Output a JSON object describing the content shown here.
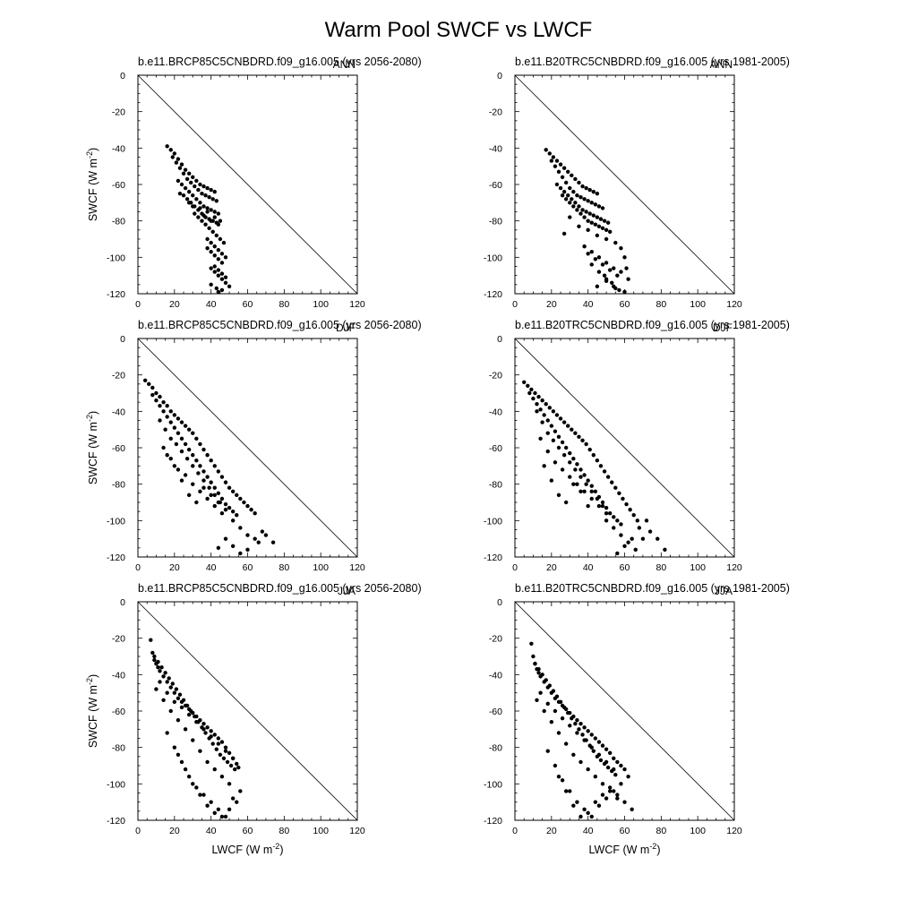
{
  "figure": {
    "title": "Warm Pool SWCF vs LWCF"
  },
  "axes": {
    "xlabel_base": "LWCF (W m",
    "xlabel_sup": "-2",
    "xlabel_tail": ")",
    "ylabel_base": "SWCF (W m",
    "ylabel_sup": "-2",
    "ylabel_tail": ")",
    "xlim": [
      0,
      120
    ],
    "ylim": [
      -120,
      0
    ],
    "xticks": [
      "0",
      "20",
      "40",
      "60",
      "80",
      "100",
      "120"
    ],
    "yticks": [
      "0",
      "-20",
      "-40",
      "-60",
      "-80",
      "-100",
      "-120"
    ],
    "reference_line": "1:1 line from (0,0) to (120,-120)"
  },
  "chart_data": [
    {
      "type": "scatter",
      "title": "b.e11.BRCP85C5CNBDRD.f09_g16.005 (yrs 2056-2080)",
      "season": "ANN",
      "xlim": [
        0,
        120
      ],
      "ylim": [
        -120,
        0
      ],
      "x": [
        16,
        18,
        20,
        22,
        24,
        26,
        28,
        30,
        32,
        34,
        36,
        38,
        40,
        42,
        19,
        21,
        23,
        25,
        27,
        29,
        31,
        33,
        35,
        37,
        39,
        41,
        43,
        22,
        24,
        26,
        28,
        30,
        32,
        34,
        36,
        38,
        40,
        42,
        44,
        25,
        27,
        29,
        31,
        33,
        35,
        37,
        39,
        41,
        43,
        23,
        28,
        34,
        38,
        42,
        45,
        44,
        40,
        36,
        30,
        31,
        33,
        35,
        37,
        39,
        41,
        43,
        45,
        47,
        38,
        40,
        42,
        44,
        46,
        42,
        44,
        46,
        48,
        40,
        42,
        44,
        46,
        48,
        38,
        40,
        42,
        44,
        46,
        48,
        40,
        43,
        46,
        50,
        44
      ],
      "y": [
        -39,
        -41,
        -43,
        -46,
        -49,
        -52,
        -54,
        -56,
        -58,
        -60,
        -61,
        -62,
        -63,
        -64,
        -45,
        -48,
        -51,
        -54,
        -57,
        -59,
        -61,
        -63,
        -65,
        -66,
        -67,
        -68,
        -69,
        -58,
        -60,
        -62,
        -64,
        -66,
        -68,
        -70,
        -72,
        -73,
        -74,
        -75,
        -76,
        -66,
        -68,
        -70,
        -72,
        -74,
        -76,
        -78,
        -79,
        -80,
        -81,
        -65,
        -70,
        -73,
        -75,
        -78,
        -80,
        -82,
        -80,
        -77,
        -72,
        -76,
        -78,
        -80,
        -82,
        -84,
        -86,
        -88,
        -90,
        -92,
        -95,
        -97,
        -99,
        -101,
        -103,
        -105,
        -107,
        -109,
        -111,
        -106,
        -108,
        -110,
        -112,
        -114,
        -90,
        -92,
        -94,
        -96,
        -98,
        -100,
        -115,
        -117,
        -118,
        -116,
        -119
      ]
    },
    {
      "type": "scatter",
      "title": "b.e11.B20TRC5CNBDRD.f09_g16.005 (yrs 1981-2005)",
      "season": "ANN",
      "xlim": [
        0,
        120
      ],
      "ylim": [
        -120,
        0
      ],
      "x": [
        17,
        19,
        21,
        23,
        25,
        27,
        29,
        31,
        33,
        35,
        37,
        39,
        41,
        43,
        45,
        20,
        22,
        24,
        26,
        28,
        30,
        32,
        34,
        36,
        38,
        40,
        42,
        44,
        46,
        48,
        23,
        25,
        27,
        29,
        31,
        33,
        35,
        37,
        39,
        41,
        43,
        45,
        47,
        49,
        51,
        26,
        28,
        30,
        32,
        34,
        36,
        38,
        40,
        42,
        44,
        46,
        48,
        50,
        52,
        27,
        30,
        35,
        40,
        45,
        50,
        55,
        38,
        42,
        46,
        50,
        54,
        58,
        40,
        44,
        48,
        52,
        56,
        60,
        42,
        46,
        50,
        54,
        58,
        62,
        45,
        49,
        53,
        57,
        61,
        50,
        55,
        60
      ],
      "y": [
        -41,
        -43,
        -45,
        -47,
        -49,
        -51,
        -53,
        -55,
        -57,
        -59,
        -61,
        -62,
        -63,
        -64,
        -65,
        -47,
        -50,
        -53,
        -56,
        -59,
        -62,
        -64,
        -66,
        -67,
        -68,
        -69,
        -70,
        -71,
        -72,
        -73,
        -60,
        -62,
        -64,
        -66,
        -68,
        -70,
        -72,
        -74,
        -75,
        -76,
        -77,
        -78,
        -79,
        -80,
        -81,
        -66,
        -68,
        -70,
        -72,
        -74,
        -76,
        -78,
        -80,
        -81,
        -82,
        -83,
        -84,
        -85,
        -86,
        -87,
        -78,
        -83,
        -85,
        -88,
        -90,
        -92,
        -94,
        -97,
        -100,
        -103,
        -106,
        -95,
        -98,
        -101,
        -104,
        -107,
        -110,
        -100,
        -104,
        -108,
        -112,
        -116,
        -108,
        -112,
        -116,
        -110,
        -114,
        -118,
        -106,
        -113,
        -117,
        -119
      ]
    },
    {
      "type": "scatter",
      "title": "b.e11.BRCP85C5CNBDRD.f09_g16.005 (yrs 2056-2080)",
      "season": "DJF",
      "xlim": [
        0,
        120
      ],
      "ylim": [
        -120,
        0
      ],
      "x": [
        4,
        6,
        8,
        10,
        12,
        14,
        16,
        18,
        20,
        22,
        24,
        26,
        28,
        30,
        32,
        34,
        36,
        38,
        40,
        42,
        44,
        46,
        48,
        50,
        52,
        54,
        56,
        58,
        60,
        62,
        64,
        8,
        10,
        12,
        14,
        16,
        18,
        20,
        22,
        24,
        26,
        28,
        30,
        32,
        34,
        36,
        38,
        40,
        42,
        44,
        46,
        48,
        50,
        52,
        54,
        12,
        15,
        18,
        21,
        24,
        27,
        30,
        33,
        36,
        39,
        42,
        45,
        14,
        18,
        22,
        26,
        30,
        34,
        38,
        42,
        46,
        16,
        20,
        24,
        28,
        32,
        36,
        40,
        44,
        48,
        52,
        56,
        60,
        64,
        68,
        74,
        44,
        48,
        52,
        56,
        60,
        66,
        70
      ],
      "y": [
        -23,
        -25,
        -27,
        -30,
        -32,
        -35,
        -37,
        -40,
        -42,
        -44,
        -46,
        -48,
        -50,
        -52,
        -55,
        -58,
        -61,
        -64,
        -67,
        -70,
        -73,
        -76,
        -79,
        -82,
        -84,
        -86,
        -88,
        -90,
        -92,
        -94,
        -96,
        -31,
        -34,
        -37,
        -40,
        -43,
        -46,
        -49,
        -52,
        -55,
        -58,
        -61,
        -64,
        -67,
        -70,
        -73,
        -76,
        -79,
        -82,
        -85,
        -88,
        -91,
        -93,
        -95,
        -97,
        -45,
        -50,
        -55,
        -58,
        -62,
        -66,
        -70,
        -74,
        -78,
        -82,
        -86,
        -90,
        -60,
        -66,
        -72,
        -75,
        -80,
        -84,
        -88,
        -92,
        -96,
        -64,
        -70,
        -78,
        -86,
        -90,
        -82,
        -86,
        -90,
        -94,
        -100,
        -104,
        -108,
        -110,
        -106,
        -112,
        -115,
        -110,
        -114,
        -118,
        -116,
        -112,
        -108
      ]
    },
    {
      "type": "scatter",
      "title": "b.e11.B20TRC5CNBDRD.f09_g16.005 (yrs 1981-2005)",
      "season": "DJF",
      "xlim": [
        0,
        120
      ],
      "ylim": [
        -120,
        0
      ],
      "x": [
        5,
        7,
        9,
        11,
        13,
        15,
        17,
        19,
        21,
        23,
        25,
        27,
        29,
        31,
        33,
        35,
        37,
        39,
        41,
        43,
        45,
        47,
        49,
        51,
        53,
        55,
        57,
        59,
        61,
        63,
        65,
        67,
        8,
        10,
        12,
        14,
        16,
        18,
        20,
        22,
        24,
        26,
        28,
        30,
        32,
        34,
        36,
        38,
        40,
        42,
        44,
        46,
        48,
        50,
        52,
        54,
        56,
        58,
        12,
        15,
        18,
        21,
        24,
        27,
        30,
        33,
        36,
        39,
        42,
        45,
        48,
        14,
        18,
        22,
        26,
        30,
        34,
        38,
        42,
        46,
        50,
        16,
        20,
        24,
        28,
        32,
        36,
        40,
        50,
        54,
        58,
        62,
        66,
        70,
        74,
        78,
        82,
        56,
        60,
        64,
        68,
        72
      ],
      "y": [
        -24,
        -26,
        -28,
        -30,
        -32,
        -34,
        -36,
        -38,
        -40,
        -42,
        -44,
        -46,
        -48,
        -50,
        -52,
        -54,
        -56,
        -58,
        -61,
        -64,
        -67,
        -70,
        -73,
        -76,
        -79,
        -82,
        -85,
        -88,
        -91,
        -94,
        -97,
        -100,
        -30,
        -33,
        -36,
        -39,
        -42,
        -45,
        -48,
        -51,
        -54,
        -57,
        -60,
        -63,
        -66,
        -69,
        -72,
        -75,
        -78,
        -81,
        -84,
        -87,
        -90,
        -93,
        -96,
        -98,
        -100,
        -102,
        -40,
        -46,
        -52,
        -56,
        -60,
        -64,
        -68,
        -72,
        -76,
        -80,
        -84,
        -88,
        -92,
        -55,
        -62,
        -68,
        -72,
        -76,
        -80,
        -84,
        -88,
        -92,
        -96,
        -70,
        -78,
        -86,
        -90,
        -80,
        -84,
        -92,
        -100,
        -104,
        -108,
        -112,
        -116,
        -110,
        -106,
        -110,
        -116,
        -118,
        -114,
        -110,
        -104,
        -100
      ]
    },
    {
      "type": "scatter",
      "title": "b.e11.BRCP85C5CNBDRD.f09_g16.005 (yrs 2056-2080)",
      "season": "JJA",
      "xlim": [
        0,
        120
      ],
      "ylim": [
        -120,
        0
      ],
      "x": [
        7,
        8,
        9,
        10,
        11,
        12,
        14,
        16,
        18,
        20,
        22,
        24,
        26,
        28,
        30,
        32,
        34,
        36,
        38,
        40,
        42,
        44,
        46,
        48,
        50,
        52,
        54,
        55,
        9,
        11,
        13,
        15,
        17,
        19,
        21,
        23,
        25,
        27,
        29,
        31,
        33,
        35,
        37,
        39,
        41,
        43,
        45,
        47,
        49,
        51,
        53,
        12,
        16,
        20,
        24,
        28,
        32,
        36,
        40,
        44,
        48,
        52,
        10,
        14,
        18,
        22,
        26,
        30,
        34,
        38,
        42,
        46,
        50,
        16,
        20,
        24,
        28,
        32,
        36,
        40,
        44,
        48,
        52,
        56,
        22,
        26,
        30,
        34,
        38,
        42,
        46,
        50,
        54
      ],
      "y": [
        -21,
        -28,
        -32,
        -34,
        -36,
        -38,
        -41,
        -44,
        -47,
        -50,
        -53,
        -55,
        -57,
        -59,
        -61,
        -63,
        -65,
        -67,
        -69,
        -71,
        -73,
        -75,
        -77,
        -80,
        -83,
        -86,
        -89,
        -91,
        -30,
        -33,
        -36,
        -39,
        -42,
        -45,
        -48,
        -51,
        -54,
        -57,
        -60,
        -63,
        -66,
        -69,
        -72,
        -75,
        -78,
        -81,
        -84,
        -86,
        -88,
        -90,
        -92,
        -44,
        -50,
        -55,
        -58,
        -62,
        -66,
        -70,
        -74,
        -78,
        -82,
        -86,
        -48,
        -54,
        -60,
        -65,
        -70,
        -76,
        -82,
        -88,
        -92,
        -96,
        -100,
        -72,
        -80,
        -88,
        -96,
        -102,
        -106,
        -110,
        -114,
        -118,
        -108,
        -104,
        -84,
        -92,
        -100,
        -106,
        -112,
        -116,
        -118,
        -114,
        -110
      ]
    },
    {
      "type": "scatter",
      "title": "b.e11.B20TRC5CNBDRD.f09_g16.005 (yrs 1981-2005)",
      "season": "JJA",
      "xlim": [
        0,
        120
      ],
      "ylim": [
        -120,
        0
      ],
      "x": [
        9,
        10,
        11,
        12,
        13,
        14,
        16,
        18,
        20,
        22,
        24,
        26,
        28,
        30,
        32,
        34,
        36,
        38,
        40,
        42,
        44,
        46,
        48,
        50,
        52,
        54,
        56,
        58,
        60,
        11,
        13,
        15,
        17,
        19,
        21,
        23,
        25,
        27,
        29,
        31,
        33,
        35,
        37,
        39,
        41,
        43,
        45,
        47,
        49,
        51,
        53,
        55,
        14,
        18,
        22,
        26,
        30,
        34,
        38,
        42,
        46,
        50,
        54,
        12,
        16,
        20,
        24,
        28,
        32,
        36,
        40,
        44,
        48,
        52,
        56,
        18,
        22,
        26,
        30,
        34,
        38,
        42,
        46,
        50,
        54,
        58,
        62,
        24,
        28,
        32,
        36,
        40,
        44,
        48,
        52,
        56,
        60,
        64
      ],
      "y": [
        -23,
        -30,
        -34,
        -37,
        -39,
        -41,
        -44,
        -47,
        -50,
        -53,
        -55,
        -57,
        -59,
        -61,
        -63,
        -65,
        -67,
        -69,
        -71,
        -73,
        -75,
        -77,
        -79,
        -81,
        -83,
        -86,
        -88,
        -90,
        -92,
        -34,
        -37,
        -40,
        -43,
        -46,
        -49,
        -52,
        -55,
        -58,
        -61,
        -64,
        -67,
        -70,
        -73,
        -76,
        -79,
        -82,
        -85,
        -87,
        -89,
        -91,
        -93,
        -95,
        -50,
        -56,
        -60,
        -64,
        -68,
        -72,
        -76,
        -80,
        -84,
        -88,
        -92,
        -54,
        -60,
        -66,
        -72,
        -78,
        -84,
        -88,
        -92,
        -96,
        -100,
        -104,
        -108,
        -82,
        -90,
        -98,
        -104,
        -110,
        -114,
        -118,
        -112,
        -108,
        -104,
        -100,
        -96,
        -96,
        -104,
        -112,
        -118,
        -116,
        -110,
        -106,
        -102,
        -106,
        -110,
        -114
      ]
    }
  ]
}
